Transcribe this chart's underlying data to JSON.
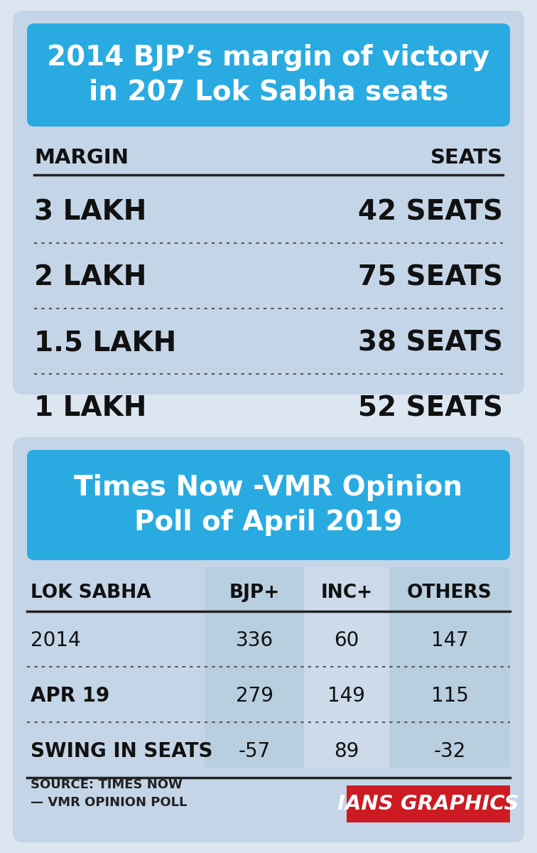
{
  "section1_title": "2014 BJP’s margin of victory\nin 207 Lok Sabha seats",
  "section1_header_left": "MARGIN",
  "section1_header_right": "SEATS",
  "section1_rows": [
    {
      "margin": "3 LAKH",
      "seats": "42 SEATS"
    },
    {
      "margin": "2 LAKH",
      "seats": "75 SEATS"
    },
    {
      "margin": "1.5 LAKH",
      "seats": "38 SEATS"
    },
    {
      "margin": "1 LAKH",
      "seats": "52 SEATS"
    }
  ],
  "section2_title": "Times Now -VMR Opinion\nPoll of April 2019",
  "section2_headers": [
    "LOK SABHA",
    "BJP+",
    "INC+",
    "OTHERS"
  ],
  "section2_rows": [
    {
      "label": "2014",
      "bjp": "336",
      "inc": "60",
      "others": "147",
      "bold": false
    },
    {
      "label": "APR 19",
      "bjp": "279",
      "inc": "149",
      "others": "115",
      "bold": true
    },
    {
      "label": "SWING IN SEATS",
      "bjp": "-57",
      "inc": "89",
      "others": "-32",
      "bold": true
    }
  ],
  "source_text": "SOURCE: TIMES NOW\n— VMR OPINION POLL",
  "ians_text": "IANS GRAPHICS",
  "bg_color_outer": "#dce6f0",
  "bg_color_s1": "#c5d5e8",
  "bg_color_s2": "#c5d5e8",
  "title_bg_color": "#29abe2",
  "title_text_color": "#ffffff",
  "table_text_color": "#111111",
  "col_shade1": "#b8cfe0",
  "col_shade2": "#ccdaea",
  "ians_bg": "#cc1b22",
  "ians_text_color": "#ffffff"
}
